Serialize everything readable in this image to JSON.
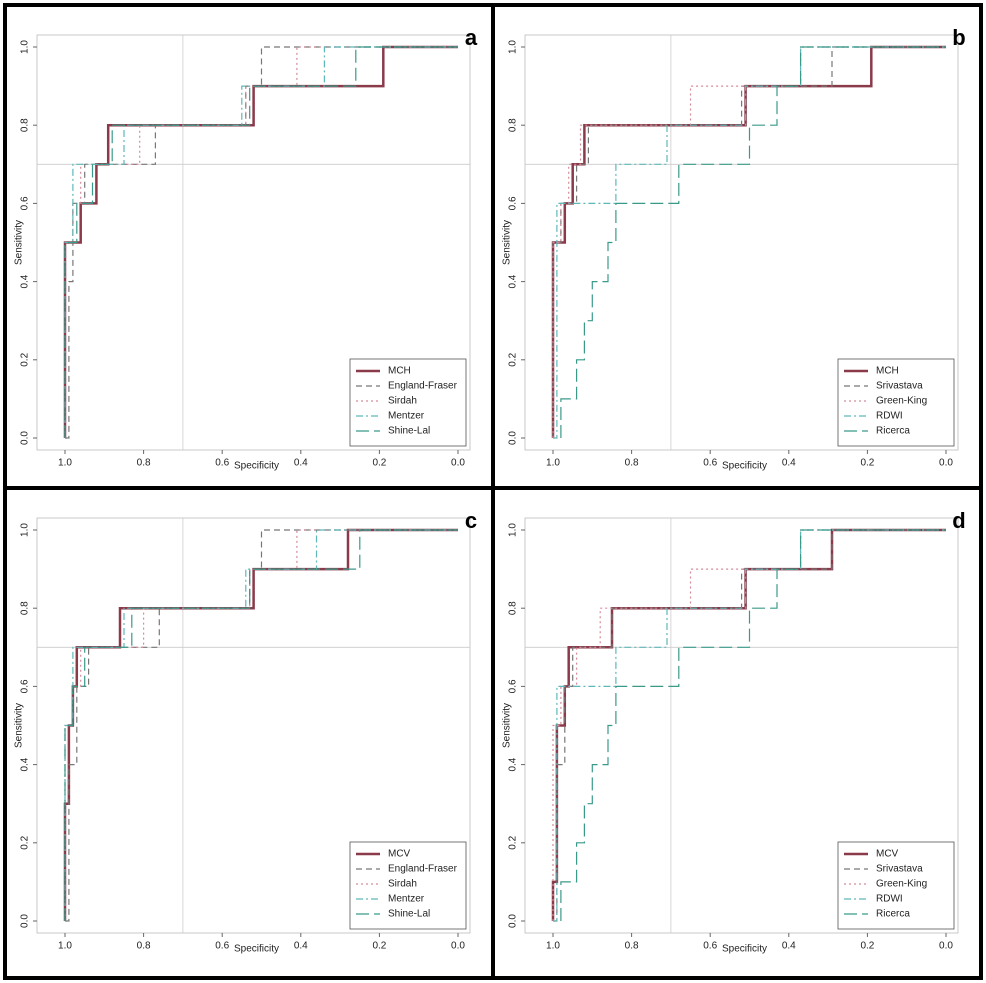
{
  "chart_data": [
    {
      "type": "line",
      "label": "a",
      "x_label": "Specificity",
      "y_label": "Sensitivity",
      "xlim": [
        1,
        0
      ],
      "ylim": [
        0,
        1
      ],
      "vline": 0.7,
      "hline": 0.7,
      "legend": "lower right",
      "xticks": [
        {
          "value": 1,
          "label": "1.0"
        },
        {
          "value": 0.8,
          "label": "0.8"
        },
        {
          "value": 0.6,
          "label": "0.6"
        },
        {
          "value": 0.4,
          "label": "0.4"
        },
        {
          "value": 0.2,
          "label": "0.2"
        },
        {
          "value": 0,
          "label": "0.0"
        }
      ],
      "yticks": [
        {
          "value": 0,
          "label": "0.0"
        },
        {
          "value": 0.2,
          "label": "0.2"
        },
        {
          "value": 0.4,
          "label": "0.4"
        },
        {
          "value": 0.6,
          "label": "0.6"
        },
        {
          "value": 0.8,
          "label": "0.8"
        },
        {
          "value": 1,
          "label": "1.0"
        }
      ],
      "series": [
        {
          "name": "MCH",
          "color": "#8b3a4a",
          "style": "solid",
          "linewidth": 2.5,
          "x": [
            1,
            1,
            0.96,
            0.96,
            0.92,
            0.92,
            0.89,
            0.89,
            0.52,
            0.52,
            0.19,
            0.19,
            0
          ],
          "values": [
            0,
            0.5,
            0.5,
            0.6,
            0.6,
            0.7,
            0.7,
            0.8,
            0.8,
            0.9,
            0.9,
            1,
            1
          ]
        },
        {
          "name": "England-Fraser",
          "color": "#777777",
          "style": "dashed",
          "linewidth": 1.2,
          "x": [
            1,
            0.99,
            0.99,
            0.98,
            0.98,
            0.95,
            0.95,
            0.77,
            0.77,
            0.54,
            0.54,
            0.5,
            0.5,
            0
          ],
          "values": [
            0,
            0,
            0.4,
            0.4,
            0.6,
            0.6,
            0.7,
            0.7,
            0.8,
            0.8,
            0.9,
            0.9,
            1,
            1
          ]
        },
        {
          "name": "Sirdah",
          "color": "#d48a9a",
          "style": "dotted",
          "linewidth": 1.2,
          "x": [
            1,
            1,
            0.98,
            0.98,
            0.96,
            0.96,
            0.81,
            0.81,
            0.54,
            0.54,
            0.41,
            0.41,
            0
          ],
          "values": [
            0,
            0.5,
            0.5,
            0.6,
            0.6,
            0.7,
            0.7,
            0.8,
            0.8,
            0.9,
            0.9,
            1,
            1
          ]
        },
        {
          "name": "Mentzer",
          "color": "#5fb8b8",
          "style": "dashdot",
          "linewidth": 1.2,
          "x": [
            1,
            1,
            0.98,
            0.98,
            0.85,
            0.85,
            0.55,
            0.55,
            0.34,
            0.34,
            0
          ],
          "values": [
            0,
            0.5,
            0.5,
            0.7,
            0.7,
            0.8,
            0.8,
            0.9,
            0.9,
            1,
            1
          ]
        },
        {
          "name": "Shine-Lal",
          "color": "#3a9a8a",
          "style": "longdash",
          "linewidth": 1.2,
          "x": [
            1,
            1,
            0.97,
            0.97,
            0.93,
            0.93,
            0.88,
            0.88,
            0.53,
            0.53,
            0.26,
            0.26,
            0
          ],
          "values": [
            0,
            0.5,
            0.5,
            0.6,
            0.6,
            0.7,
            0.7,
            0.8,
            0.8,
            0.9,
            0.9,
            1,
            1
          ]
        }
      ]
    },
    {
      "type": "line",
      "label": "b",
      "x_label": "Specificity",
      "y_label": "Sensitivity",
      "xlim": [
        1,
        0
      ],
      "ylim": [
        0,
        1
      ],
      "vline": 0.7,
      "hline": 0.7,
      "legend": "lower right",
      "xticks": [
        {
          "value": 1,
          "label": "1.0"
        },
        {
          "value": 0.8,
          "label": "0.8"
        },
        {
          "value": 0.6,
          "label": "0.6"
        },
        {
          "value": 0.4,
          "label": "0.4"
        },
        {
          "value": 0.2,
          "label": "0.2"
        },
        {
          "value": 0,
          "label": "0.0"
        }
      ],
      "yticks": [
        {
          "value": 0,
          "label": "0.0"
        },
        {
          "value": 0.2,
          "label": "0.2"
        },
        {
          "value": 0.4,
          "label": "0.4"
        },
        {
          "value": 0.6,
          "label": "0.6"
        },
        {
          "value": 0.8,
          "label": "0.8"
        },
        {
          "value": 1,
          "label": "1.0"
        }
      ],
      "series": [
        {
          "name": "MCH",
          "color": "#8b3a4a",
          "style": "solid",
          "linewidth": 2.5,
          "x": [
            1,
            1,
            0.97,
            0.97,
            0.95,
            0.95,
            0.92,
            0.92,
            0.88,
            0.88,
            0.51,
            0.51,
            0.19,
            0.19,
            0
          ],
          "values": [
            0,
            0.5,
            0.5,
            0.6,
            0.6,
            0.7,
            0.7,
            0.8,
            0.8,
            0.8,
            0.8,
            0.9,
            0.9,
            1,
            1
          ]
        },
        {
          "name": "Srivastava",
          "color": "#777777",
          "style": "dashed",
          "linewidth": 1.2,
          "x": [
            1,
            1,
            0.98,
            0.98,
            0.94,
            0.94,
            0.91,
            0.91,
            0.52,
            0.52,
            0.29,
            0.29,
            0
          ],
          "values": [
            0,
            0.5,
            0.5,
            0.6,
            0.6,
            0.7,
            0.7,
            0.8,
            0.8,
            0.9,
            0.9,
            1,
            1
          ]
        },
        {
          "name": "Green-King",
          "color": "#d48a9a",
          "style": "dotted",
          "linewidth": 1.2,
          "x": [
            1,
            1,
            0.98,
            0.98,
            0.96,
            0.96,
            0.93,
            0.93,
            0.65,
            0.65,
            0.37,
            0.37,
            0
          ],
          "values": [
            0,
            0.5,
            0.5,
            0.6,
            0.6,
            0.7,
            0.7,
            0.8,
            0.8,
            0.9,
            0.9,
            1,
            1
          ]
        },
        {
          "name": "RDWI",
          "color": "#5fb8b8",
          "style": "dashdot",
          "linewidth": 1.2,
          "x": [
            1,
            0.99,
            0.99,
            0.84,
            0.84,
            0.71,
            0.71,
            0.51,
            0.51,
            0.37,
            0.37,
            0
          ],
          "values": [
            0,
            0,
            0.6,
            0.6,
            0.7,
            0.7,
            0.8,
            0.8,
            0.9,
            0.9,
            1,
            1
          ]
        },
        {
          "name": "Ricerca",
          "color": "#3a9a8a",
          "style": "longdash",
          "linewidth": 1.2,
          "x": [
            0.98,
            0.98,
            0.94,
            0.94,
            0.92,
            0.92,
            0.9,
            0.9,
            0.86,
            0.86,
            0.84,
            0.84,
            0.68,
            0.68,
            0.5,
            0.5,
            0.43,
            0.43,
            0.37,
            0.37,
            0
          ],
          "values": [
            0,
            0.1,
            0.1,
            0.2,
            0.2,
            0.3,
            0.3,
            0.4,
            0.4,
            0.5,
            0.5,
            0.6,
            0.6,
            0.7,
            0.7,
            0.8,
            0.8,
            0.9,
            0.9,
            1,
            1
          ]
        }
      ]
    },
    {
      "type": "line",
      "label": "c",
      "x_label": "Specificity",
      "y_label": "Sensitivity",
      "xlim": [
        1,
        0
      ],
      "ylim": [
        0,
        1
      ],
      "vline": 0.7,
      "hline": 0.7,
      "legend": "lower right",
      "xticks": [
        {
          "value": 1,
          "label": "1.0"
        },
        {
          "value": 0.8,
          "label": "0.8"
        },
        {
          "value": 0.6,
          "label": "0.6"
        },
        {
          "value": 0.4,
          "label": "0.4"
        },
        {
          "value": 0.2,
          "label": "0.2"
        },
        {
          "value": 0,
          "label": "0.0"
        }
      ],
      "yticks": [
        {
          "value": 0,
          "label": "0.0"
        },
        {
          "value": 0.2,
          "label": "0.2"
        },
        {
          "value": 0.4,
          "label": "0.4"
        },
        {
          "value": 0.6,
          "label": "0.6"
        },
        {
          "value": 0.8,
          "label": "0.8"
        },
        {
          "value": 1,
          "label": "1.0"
        }
      ],
      "series": [
        {
          "name": "MCV",
          "color": "#8b3a4a",
          "style": "solid",
          "linewidth": 2.5,
          "x": [
            1,
            1,
            0.99,
            0.99,
            0.98,
            0.98,
            0.97,
            0.97,
            0.86,
            0.86,
            0.52,
            0.52,
            0.28,
            0.28,
            0
          ],
          "values": [
            0,
            0.3,
            0.3,
            0.5,
            0.5,
            0.6,
            0.6,
            0.7,
            0.7,
            0.8,
            0.8,
            0.9,
            0.9,
            1,
            1
          ]
        },
        {
          "name": "England-Fraser",
          "color": "#777777",
          "style": "dashed",
          "linewidth": 1.2,
          "x": [
            1,
            0.99,
            0.99,
            0.97,
            0.97,
            0.94,
            0.94,
            0.76,
            0.76,
            0.53,
            0.53,
            0.5,
            0.5,
            0
          ],
          "values": [
            0,
            0,
            0.4,
            0.4,
            0.6,
            0.6,
            0.7,
            0.7,
            0.8,
            0.8,
            0.9,
            0.9,
            1,
            1
          ]
        },
        {
          "name": "Sirdah",
          "color": "#d48a9a",
          "style": "dotted",
          "linewidth": 1.2,
          "x": [
            1,
            1,
            0.98,
            0.98,
            0.96,
            0.96,
            0.8,
            0.8,
            0.53,
            0.53,
            0.41,
            0.41,
            0
          ],
          "values": [
            0,
            0.5,
            0.5,
            0.6,
            0.6,
            0.7,
            0.7,
            0.8,
            0.8,
            0.9,
            0.9,
            1,
            1
          ]
        },
        {
          "name": "Mentzer",
          "color": "#5fb8b8",
          "style": "dashdot",
          "linewidth": 1.2,
          "x": [
            1,
            1,
            0.98,
            0.98,
            0.85,
            0.85,
            0.54,
            0.54,
            0.36,
            0.36,
            0
          ],
          "values": [
            0,
            0.5,
            0.5,
            0.7,
            0.7,
            0.8,
            0.8,
            0.9,
            0.9,
            1,
            1
          ]
        },
        {
          "name": "Shine-Lal",
          "color": "#3a9a8a",
          "style": "longdash",
          "linewidth": 1.2,
          "x": [
            1,
            1,
            0.98,
            0.98,
            0.95,
            0.95,
            0.83,
            0.83,
            0.53,
            0.53,
            0.25,
            0.25,
            0
          ],
          "values": [
            0,
            0.5,
            0.5,
            0.6,
            0.6,
            0.7,
            0.7,
            0.8,
            0.8,
            0.9,
            0.9,
            1,
            1
          ]
        }
      ]
    },
    {
      "type": "line",
      "label": "d",
      "x_label": "Specificity",
      "y_label": "Sensitivity",
      "xlim": [
        1,
        0
      ],
      "ylim": [
        0,
        1
      ],
      "vline": 0.7,
      "hline": 0.7,
      "legend": "lower right",
      "xticks": [
        {
          "value": 1,
          "label": "1.0"
        },
        {
          "value": 0.8,
          "label": "0.8"
        },
        {
          "value": 0.6,
          "label": "0.6"
        },
        {
          "value": 0.4,
          "label": "0.4"
        },
        {
          "value": 0.2,
          "label": "0.2"
        },
        {
          "value": 0,
          "label": "0.0"
        }
      ],
      "yticks": [
        {
          "value": 0,
          "label": "0.0"
        },
        {
          "value": 0.2,
          "label": "0.2"
        },
        {
          "value": 0.4,
          "label": "0.4"
        },
        {
          "value": 0.6,
          "label": "0.6"
        },
        {
          "value": 0.8,
          "label": "0.8"
        },
        {
          "value": 1,
          "label": "1.0"
        }
      ],
      "series": [
        {
          "name": "MCV",
          "color": "#8b3a4a",
          "style": "solid",
          "linewidth": 2.5,
          "x": [
            1,
            1,
            0.99,
            0.99,
            0.97,
            0.97,
            0.96,
            0.96,
            0.85,
            0.85,
            0.51,
            0.51,
            0.29,
            0.29,
            0
          ],
          "values": [
            0,
            0.1,
            0.1,
            0.5,
            0.5,
            0.6,
            0.6,
            0.7,
            0.7,
            0.8,
            0.8,
            0.9,
            0.9,
            1,
            1
          ]
        },
        {
          "name": "Srivastava",
          "color": "#777777",
          "style": "dashed",
          "linewidth": 1.2,
          "x": [
            1,
            0.99,
            0.99,
            0.97,
            0.97,
            0.95,
            0.95,
            0.85,
            0.85,
            0.52,
            0.52,
            0.29,
            0.29,
            0
          ],
          "values": [
            0,
            0,
            0.4,
            0.4,
            0.6,
            0.6,
            0.7,
            0.7,
            0.8,
            0.8,
            0.9,
            0.9,
            1,
            1
          ]
        },
        {
          "name": "Green-King",
          "color": "#d48a9a",
          "style": "dotted",
          "linewidth": 1.2,
          "x": [
            1,
            1,
            0.98,
            0.98,
            0.94,
            0.94,
            0.88,
            0.88,
            0.65,
            0.65,
            0.37,
            0.37,
            0
          ],
          "values": [
            0,
            0.5,
            0.5,
            0.6,
            0.6,
            0.7,
            0.7,
            0.8,
            0.8,
            0.9,
            0.9,
            1,
            1
          ]
        },
        {
          "name": "RDWI",
          "color": "#5fb8b8",
          "style": "dashdot",
          "linewidth": 1.2,
          "x": [
            1,
            0.99,
            0.99,
            0.84,
            0.84,
            0.71,
            0.71,
            0.51,
            0.51,
            0.37,
            0.37,
            0
          ],
          "values": [
            0,
            0,
            0.6,
            0.6,
            0.7,
            0.7,
            0.8,
            0.8,
            0.9,
            0.9,
            1,
            1
          ]
        },
        {
          "name": "Ricerca",
          "color": "#3a9a8a",
          "style": "longdash",
          "linewidth": 1.2,
          "x": [
            0.98,
            0.98,
            0.94,
            0.94,
            0.92,
            0.92,
            0.9,
            0.9,
            0.86,
            0.86,
            0.84,
            0.84,
            0.68,
            0.68,
            0.5,
            0.5,
            0.43,
            0.43,
            0.37,
            0.37,
            0
          ],
          "values": [
            0,
            0.1,
            0.1,
            0.2,
            0.2,
            0.3,
            0.3,
            0.4,
            0.4,
            0.5,
            0.5,
            0.6,
            0.6,
            0.7,
            0.7,
            0.8,
            0.8,
            0.9,
            0.9,
            1,
            1
          ]
        }
      ]
    }
  ]
}
